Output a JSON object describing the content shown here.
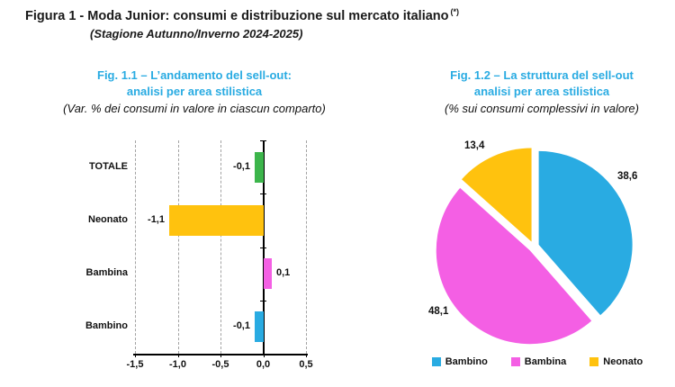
{
  "page": {
    "title": "Figura 1 - Moda Junior: consumi e distribuzione sul mercato italiano",
    "title_superscript": "(*)",
    "subtitle": "(Stagione Autunno/Inverno 2024-2025)"
  },
  "colors": {
    "accent_heading": "#29ABE2",
    "bambino_blue": "#29ABE2",
    "bambina_magenta": "#F45FE4",
    "neonato_yellow": "#FFC20E",
    "totale_green": "#3CB54B",
    "grid_gray": "#A3A3A3",
    "axis_black": "#000000"
  },
  "fig1": {
    "heading_line1": "Fig. 1.1 – L’andamento del sell-out:",
    "heading_line2": "analisi per area stilistica",
    "subheading": "(Var. % dei consumi in valore in ciascun comparto)"
  },
  "fig2": {
    "heading_line1": "Fig. 1.2 – La struttura del sell-out",
    "heading_line2": "analisi per area stilistica",
    "subheading": "(% sui consumi complessivi in valore)"
  },
  "chart_data": [
    {
      "id": "sellout-trend",
      "type": "bar",
      "orientation": "horizontal",
      "title": "Fig. 1.1 – L’andamento del sell-out: analisi per area stilistica",
      "subtitle": "(Var. % dei consumi in valore in ciascun comparto)",
      "categories": [
        "TOTALE",
        "Neonato",
        "Bambina",
        "Bambino"
      ],
      "values": [
        -0.1,
        -1.1,
        0.1,
        -0.1
      ],
      "value_labels": [
        "-0,1",
        "-1,1",
        "0,1",
        "-0,1"
      ],
      "bar_colors": [
        "#3CB54B",
        "#FFC20E",
        "#F45FE4",
        "#29ABE2"
      ],
      "xlabel": "",
      "ylabel": "",
      "xlim": [
        -1.5,
        0.5
      ],
      "x_ticks": [
        -1.5,
        -1.0,
        -0.5,
        0.0,
        0.5
      ],
      "x_tick_labels": [
        "-1,5",
        "-1,0",
        "-0,5",
        "0,0",
        "0,5"
      ],
      "grid": "vertical-dashed",
      "legend_position": "none"
    },
    {
      "id": "sellout-structure",
      "type": "pie",
      "title": "Fig. 1.2 – La struttura del sell-out analisi per area stilistica",
      "subtitle": "(% sui consumi complessivi in valore)",
      "slices": [
        {
          "name": "Bambino",
          "value": 38.6,
          "label": "38,6",
          "color": "#29ABE2"
        },
        {
          "name": "Bambina",
          "value": 48.1,
          "label": "48,1",
          "color": "#F45FE4"
        },
        {
          "name": "Neonato",
          "value": 13.4,
          "label": "13,4",
          "color": "#FFC20E"
        }
      ],
      "start_angle_deg": 0,
      "direction": "clockwise",
      "exploded": true,
      "legend_position": "bottom",
      "legend": [
        "Bambino",
        "Bambina",
        "Neonato"
      ]
    }
  ]
}
